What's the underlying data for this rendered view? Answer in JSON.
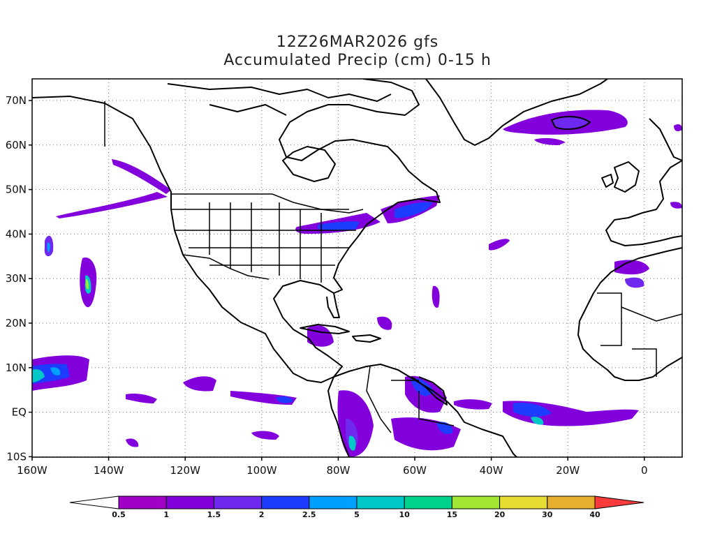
{
  "title_line1": "12Z26MAR2026 gfs",
  "title_line2": "Accumulated Precip (cm) 0-15 h",
  "lat_labels": [
    "70N",
    "60N",
    "50N",
    "40N",
    "30N",
    "20N",
    "10N",
    "EQ",
    "10S"
  ],
  "lon_labels": [
    "160W",
    "140W",
    "120W",
    "100W",
    "80W",
    "60W",
    "40W",
    "20W",
    "0"
  ],
  "colorbar": {
    "levels": [
      "0.5",
      "1",
      "1.5",
      "2",
      "2.5",
      "5",
      "10",
      "15",
      "20",
      "30",
      "40"
    ],
    "colors": [
      "#ffffff",
      "#a000c8",
      "#8200dc",
      "#6e28f0",
      "#1e3cff",
      "#00a0ff",
      "#00c8c8",
      "#00d28c",
      "#a0e632",
      "#e6dc32",
      "#e6af2d",
      "#f08228",
      "#fa3c3c"
    ]
  }
}
